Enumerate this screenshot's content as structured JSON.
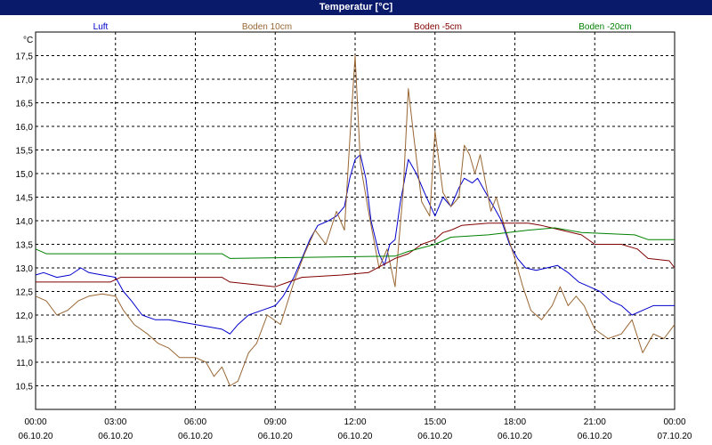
{
  "window": {
    "title": "Temperatur [°C]"
  },
  "chart_data": {
    "type": "line",
    "title": "Temperatur [°C]",
    "ylabel": "°C",
    "ylim": [
      10.0,
      18.0
    ],
    "yticks": [
      "10,5",
      "11,0",
      "11,5",
      "12,0",
      "12,5",
      "13,0",
      "13,5",
      "14,0",
      "14,5",
      "15,0",
      "15,5",
      "16,0",
      "16,5",
      "17,0",
      "17,5"
    ],
    "xlim": [
      0,
      24
    ],
    "xticks": [
      {
        "h": 0,
        "time": "00:00",
        "date": "06.10.20"
      },
      {
        "h": 3,
        "time": "03:00",
        "date": "06.10.20"
      },
      {
        "h": 6,
        "time": "06:00",
        "date": "06.10.20"
      },
      {
        "h": 9,
        "time": "09:00",
        "date": "06.10.20"
      },
      {
        "h": 12,
        "time": "12:00",
        "date": "06.10.20"
      },
      {
        "h": 15,
        "time": "15:00",
        "date": "06.10.20"
      },
      {
        "h": 18,
        "time": "18:00",
        "date": "06.10.20"
      },
      {
        "h": 21,
        "time": "21:00",
        "date": "06.10.20"
      },
      {
        "h": 24,
        "time": "00:00",
        "date": "07.10.20"
      }
    ],
    "grid": true,
    "legend_position": "top",
    "series": [
      {
        "name": "Luft",
        "color": "#0000cc",
        "points": [
          [
            0,
            12.85
          ],
          [
            0.3,
            12.9
          ],
          [
            0.8,
            12.8
          ],
          [
            1.3,
            12.85
          ],
          [
            1.7,
            13.0
          ],
          [
            2.0,
            12.9
          ],
          [
            2.5,
            12.85
          ],
          [
            3.0,
            12.8
          ],
          [
            3.3,
            12.5
          ],
          [
            3.6,
            12.3
          ],
          [
            4.0,
            12.0
          ],
          [
            4.5,
            11.9
          ],
          [
            5.0,
            11.9
          ],
          [
            5.5,
            11.85
          ],
          [
            6.0,
            11.8
          ],
          [
            6.5,
            11.75
          ],
          [
            7.0,
            11.7
          ],
          [
            7.3,
            11.6
          ],
          [
            7.6,
            11.8
          ],
          [
            8.0,
            12.0
          ],
          [
            8.5,
            12.1
          ],
          [
            9.0,
            12.2
          ],
          [
            9.3,
            12.4
          ],
          [
            9.7,
            12.8
          ],
          [
            10.0,
            13.2
          ],
          [
            10.3,
            13.6
          ],
          [
            10.6,
            13.9
          ],
          [
            11.0,
            14.0
          ],
          [
            11.3,
            14.1
          ],
          [
            11.6,
            14.3
          ],
          [
            11.8,
            14.9
          ],
          [
            12.0,
            15.3
          ],
          [
            12.2,
            15.4
          ],
          [
            12.4,
            14.9
          ],
          [
            12.6,
            14.0
          ],
          [
            12.9,
            13.3
          ],
          [
            13.1,
            13.05
          ],
          [
            13.3,
            13.5
          ],
          [
            13.5,
            13.6
          ],
          [
            13.7,
            14.4
          ],
          [
            14.0,
            15.3
          ],
          [
            14.3,
            15.0
          ],
          [
            14.6,
            14.6
          ],
          [
            15.0,
            14.1
          ],
          [
            15.3,
            14.5
          ],
          [
            15.6,
            14.3
          ],
          [
            15.9,
            14.7
          ],
          [
            16.1,
            14.9
          ],
          [
            16.4,
            14.8
          ],
          [
            16.6,
            14.9
          ],
          [
            16.9,
            14.6
          ],
          [
            17.2,
            14.3
          ],
          [
            17.5,
            14.0
          ],
          [
            17.8,
            13.5
          ],
          [
            18.1,
            13.2
          ],
          [
            18.4,
            13.0
          ],
          [
            18.8,
            12.95
          ],
          [
            19.2,
            13.0
          ],
          [
            19.6,
            13.05
          ],
          [
            20.0,
            12.9
          ],
          [
            20.4,
            12.7
          ],
          [
            20.8,
            12.6
          ],
          [
            21.2,
            12.5
          ],
          [
            21.6,
            12.3
          ],
          [
            22.0,
            12.2
          ],
          [
            22.4,
            12.0
          ],
          [
            22.8,
            12.1
          ],
          [
            23.2,
            12.2
          ],
          [
            24.0,
            12.2
          ]
        ]
      },
      {
        "name": "Boden 10cm",
        "color": "#996633",
        "points": [
          [
            0,
            12.4
          ],
          [
            0.4,
            12.3
          ],
          [
            0.8,
            12.0
          ],
          [
            1.2,
            12.1
          ],
          [
            1.6,
            12.3
          ],
          [
            2.0,
            12.4
          ],
          [
            2.5,
            12.45
          ],
          [
            3.0,
            12.4
          ],
          [
            3.3,
            12.1
          ],
          [
            3.7,
            11.8
          ],
          [
            4.2,
            11.6
          ],
          [
            4.6,
            11.4
          ],
          [
            5.0,
            11.3
          ],
          [
            5.4,
            11.1
          ],
          [
            6.0,
            11.1
          ],
          [
            6.4,
            11.0
          ],
          [
            6.7,
            10.7
          ],
          [
            7.0,
            10.9
          ],
          [
            7.3,
            10.5
          ],
          [
            7.6,
            10.6
          ],
          [
            8.0,
            11.2
          ],
          [
            8.3,
            11.4
          ],
          [
            8.7,
            12.0
          ],
          [
            9.2,
            11.8
          ],
          [
            9.7,
            12.7
          ],
          [
            10.1,
            13.3
          ],
          [
            10.5,
            13.8
          ],
          [
            10.9,
            13.5
          ],
          [
            11.3,
            14.2
          ],
          [
            11.6,
            13.8
          ],
          [
            11.8,
            15.7
          ],
          [
            12.0,
            17.5
          ],
          [
            12.2,
            15.2
          ],
          [
            12.5,
            14.2
          ],
          [
            12.9,
            13.0
          ],
          [
            13.2,
            13.4
          ],
          [
            13.5,
            12.6
          ],
          [
            13.8,
            14.6
          ],
          [
            14.0,
            16.8
          ],
          [
            14.2,
            15.8
          ],
          [
            14.5,
            14.4
          ],
          [
            14.8,
            14.1
          ],
          [
            15.0,
            15.9
          ],
          [
            15.3,
            14.6
          ],
          [
            15.6,
            14.3
          ],
          [
            15.9,
            14.5
          ],
          [
            16.1,
            15.6
          ],
          [
            16.3,
            15.4
          ],
          [
            16.5,
            15.0
          ],
          [
            16.7,
            15.4
          ],
          [
            16.9,
            14.8
          ],
          [
            17.1,
            14.2
          ],
          [
            17.3,
            14.5
          ],
          [
            17.6,
            13.9
          ],
          [
            18.0,
            13.2
          ],
          [
            18.3,
            12.6
          ],
          [
            18.6,
            12.1
          ],
          [
            19.0,
            11.9
          ],
          [
            19.4,
            12.2
          ],
          [
            19.7,
            12.6
          ],
          [
            20.0,
            12.2
          ],
          [
            20.3,
            12.4
          ],
          [
            20.6,
            12.2
          ],
          [
            21.0,
            11.7
          ],
          [
            21.5,
            11.5
          ],
          [
            22.0,
            11.6
          ],
          [
            22.4,
            11.9
          ],
          [
            22.8,
            11.2
          ],
          [
            23.2,
            11.6
          ],
          [
            23.6,
            11.5
          ],
          [
            24.0,
            11.8
          ]
        ]
      },
      {
        "name": "Boden -5cm",
        "color": "#800000",
        "points": [
          [
            0,
            12.7
          ],
          [
            2.8,
            12.7
          ],
          [
            3.2,
            12.8
          ],
          [
            7.0,
            12.8
          ],
          [
            7.3,
            12.7
          ],
          [
            9.0,
            12.6
          ],
          [
            9.5,
            12.7
          ],
          [
            10.0,
            12.8
          ],
          [
            11.5,
            12.85
          ],
          [
            12.5,
            12.9
          ],
          [
            13.5,
            13.2
          ],
          [
            14.0,
            13.3
          ],
          [
            14.5,
            13.5
          ],
          [
            15.0,
            13.6
          ],
          [
            15.3,
            13.75
          ],
          [
            15.6,
            13.8
          ],
          [
            16.0,
            13.9
          ],
          [
            17.0,
            13.95
          ],
          [
            18.5,
            13.95
          ],
          [
            19.0,
            13.9
          ],
          [
            20.5,
            13.7
          ],
          [
            21.0,
            13.5
          ],
          [
            22.0,
            13.5
          ],
          [
            22.6,
            13.4
          ],
          [
            23.0,
            13.2
          ],
          [
            23.8,
            13.15
          ],
          [
            24.0,
            13.0
          ]
        ]
      },
      {
        "name": "Boden -20cm",
        "color": "#008000",
        "points": [
          [
            0,
            13.4
          ],
          [
            0.4,
            13.3
          ],
          [
            7.0,
            13.3
          ],
          [
            7.3,
            13.2
          ],
          [
            13.5,
            13.25
          ],
          [
            14.0,
            13.35
          ],
          [
            15.0,
            13.5
          ],
          [
            15.6,
            13.65
          ],
          [
            17.0,
            13.7
          ],
          [
            18.5,
            13.8
          ],
          [
            19.5,
            13.85
          ],
          [
            20.0,
            13.8
          ],
          [
            20.5,
            13.75
          ],
          [
            22.5,
            13.7
          ],
          [
            23.0,
            13.6
          ],
          [
            24.0,
            13.6
          ]
        ]
      }
    ]
  }
}
